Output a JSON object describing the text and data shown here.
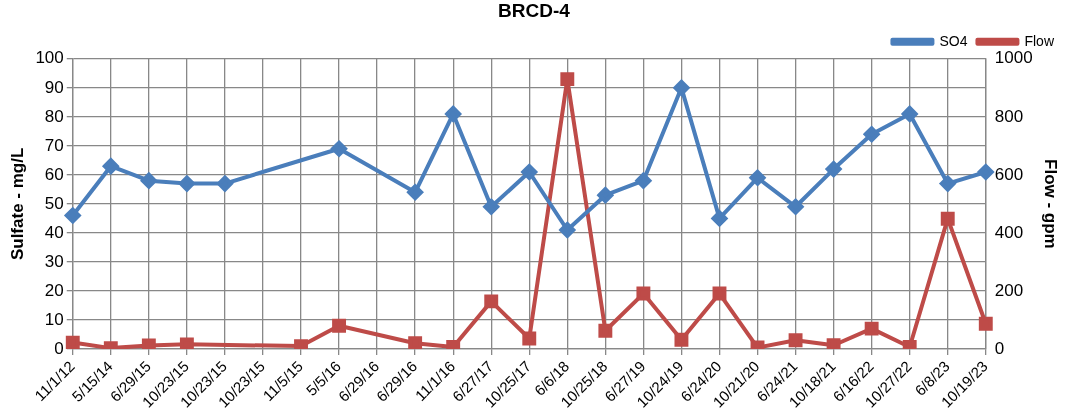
{
  "chart_data": {
    "type": "line",
    "title": "BRCD-4",
    "ylabel": "Sulfate - mg/L",
    "y2label": "Flow - gpm",
    "categories": [
      "11/1/12",
      "5/15/14",
      "6/29/15",
      "10/23/15",
      "10/23/15",
      "10/23/15",
      "11/5/15",
      "5/5/16",
      "6/29/16",
      "6/29/16",
      "11/1/16",
      "6/27/17",
      "10/25/17",
      "6/6/18",
      "10/25/18",
      "6/27/19",
      "10/24/19",
      "6/24/20",
      "10/21/20",
      "6/24/21",
      "10/18/21",
      "6/16/22",
      "10/27/22",
      "6/8/23",
      "10/19/23"
    ],
    "series": [
      {
        "name": "SO4",
        "color": "#4a7ebb",
        "marker": "diamond",
        "values": [
          46,
          63,
          58,
          57,
          57,
          null,
          null,
          69,
          null,
          54,
          81,
          49,
          61,
          41,
          53,
          58,
          90,
          45,
          59,
          49,
          62,
          74,
          81,
          57,
          61
        ]
      },
      {
        "name": "Flow",
        "color": "#be4b48",
        "marker": "square",
        "axis": "y2",
        "values": [
          22,
          3,
          12,
          16,
          null,
          null,
          10,
          80,
          null,
          20,
          7,
          164,
          36,
          930,
          63,
          191,
          32,
          191,
          5,
          30,
          13,
          70,
          7,
          449,
          87
        ]
      }
    ],
    "ylim": [
      0,
      100
    ],
    "yticks": [
      0,
      10,
      20,
      30,
      40,
      50,
      60,
      70,
      80,
      90,
      100
    ],
    "y2lim": [
      0,
      1000
    ],
    "y2ticks": [
      0,
      200,
      400,
      600,
      800,
      1000
    ],
    "grid": true,
    "legend": "top right",
    "line_style": "solid"
  }
}
